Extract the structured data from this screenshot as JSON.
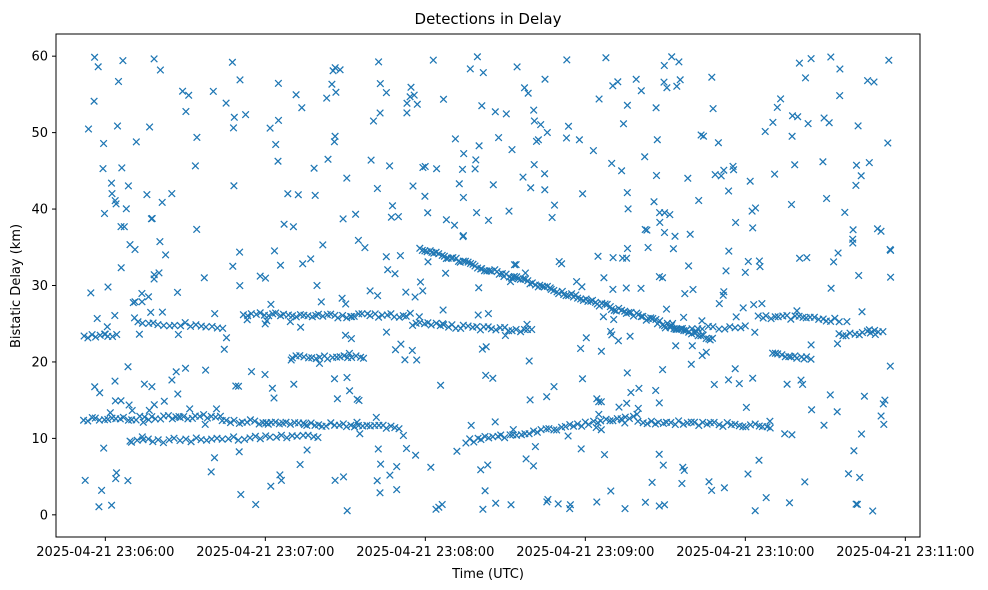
{
  "chart_data": {
    "type": "scatter",
    "title": "Detections in Delay",
    "xlabel": "Time (UTC)",
    "ylabel": "Bistatic Delay (km)",
    "marker": "x",
    "color": "#1f77b4",
    "x_unit": "seconds after 2025-04-21 23:05:00",
    "xlim": [
      41.5,
      365.5
    ],
    "ylim": [
      -2.9,
      62.9
    ],
    "grid": false,
    "x_tick_values": [
      60,
      120,
      180,
      240,
      300,
      360
    ],
    "x_tick_labels": [
      "2025-04-21 23:06:00",
      "2025-04-21 23:07:00",
      "2025-04-21 23:08:00",
      "2025-04-21 23:09:00",
      "2025-04-21 23:10:00",
      "2025-04-21 23:11:00"
    ],
    "y_tick_values": [
      0,
      10,
      20,
      30,
      40,
      50,
      60
    ],
    "y_tick_labels": [
      "0",
      "10",
      "20",
      "30",
      "40",
      "50",
      "60"
    ],
    "x_range": [
      51.5,
      354.5
    ],
    "tracks": [
      {
        "name": "track-low-1",
        "from": [
          52,
          12.5
        ],
        "to": [
          104,
          12.9
        ],
        "step": 1.5
      },
      {
        "name": "track-low-2",
        "from": [
          104,
          12.3
        ],
        "to": [
          170,
          11.5
        ],
        "step": 1.5
      },
      {
        "name": "track-low-3",
        "from": [
          195,
          9.6
        ],
        "to": [
          260,
          12.9
        ],
        "step": 1.5
      },
      {
        "name": "track-low-4",
        "from": [
          260,
          12.2
        ],
        "to": [
          310,
          11.6
        ],
        "step": 1.5
      },
      {
        "name": "track-low-5",
        "from": [
          70,
          9.6
        ],
        "to": [
          140,
          10.3
        ],
        "step": 2
      },
      {
        "name": "track-mid-1",
        "from": [
          52,
          23.4
        ],
        "to": [
          65,
          23.4
        ],
        "step": 1.5
      },
      {
        "name": "track-mid-2",
        "from": [
          72,
          25.2
        ],
        "to": [
          105,
          24.6
        ],
        "step": 2
      },
      {
        "name": "track-mid-3",
        "from": [
          112,
          26.3
        ],
        "to": [
          140,
          26.0
        ],
        "step": 1.5
      },
      {
        "name": "track-mid-4",
        "from": [
          140,
          26.0
        ],
        "to": [
          175,
          26.1
        ],
        "step": 1.5
      },
      {
        "name": "track-mid-5",
        "from": [
          175,
          25.0
        ],
        "to": [
          220,
          24.0
        ],
        "step": 1.5
      },
      {
        "name": "track-mid-6",
        "from": [
          270,
          24.3
        ],
        "to": [
          300,
          24.6
        ],
        "step": 2
      },
      {
        "name": "track-mid-7",
        "from": [
          305,
          26.0
        ],
        "to": [
          335,
          25.5
        ],
        "step": 1.5
      },
      {
        "name": "track-mid-8",
        "from": [
          335,
          23.5
        ],
        "to": [
          352,
          24.0
        ],
        "step": 1.5
      },
      {
        "name": "track-mid-9",
        "from": [
          310,
          21.0
        ],
        "to": [
          325,
          20.5
        ],
        "step": 1.2
      },
      {
        "name": "track-mid-10",
        "from": [
          130,
          20.6
        ],
        "to": [
          158,
          20.6
        ],
        "step": 1.5
      },
      {
        "name": "track-descending",
        "from": [
          178,
          34.8
        ],
        "to": [
          288,
          23.0
        ],
        "step": 0.9
      }
    ],
    "scatter_count": 560,
    "scatter_seed": 11
  }
}
